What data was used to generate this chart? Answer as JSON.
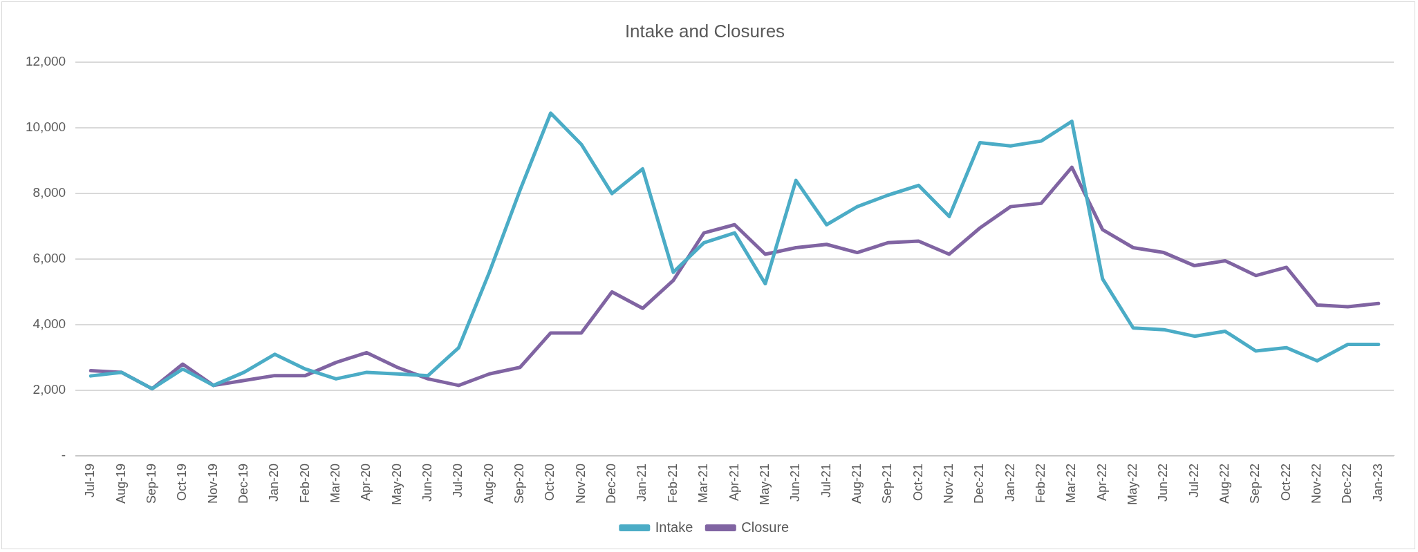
{
  "chart_data": {
    "type": "line",
    "title": "Intake and Closures",
    "categories": [
      "Jul-19",
      "Aug-19",
      "Sep-19",
      "Oct-19",
      "Nov-19",
      "Dec-19",
      "Jan-20",
      "Feb-20",
      "Mar-20",
      "Apr-20",
      "May-20",
      "Jun-20",
      "Jul-20",
      "Aug-20",
      "Sep-20",
      "Oct-20",
      "Nov-20",
      "Dec-20",
      "Jan-21",
      "Feb-21",
      "Mar-21",
      "Apr-21",
      "May-21",
      "Jun-21",
      "Jul-21",
      "Aug-21",
      "Sep-21",
      "Oct-21",
      "Nov-21",
      "Dec-21",
      "Jan-22",
      "Feb-22",
      "Mar-22",
      "Apr-22",
      "May-22",
      "Jun-22",
      "Jul-22",
      "Aug-22",
      "Sep-22",
      "Oct-22",
      "Nov-22",
      "Dec-22",
      "Jan-23"
    ],
    "series": [
      {
        "name": "Intake",
        "color": "#4bacc6",
        "values": [
          2440,
          2550,
          2050,
          2650,
          2150,
          2550,
          3100,
          2650,
          2350,
          2550,
          2500,
          2450,
          3300,
          5600,
          8100,
          10450,
          9500,
          8000,
          8750,
          5600,
          6500,
          6800,
          5250,
          8400,
          7050,
          7600,
          7950,
          8250,
          7300,
          9550,
          9450,
          9600,
          10200,
          5400,
          3900,
          3850,
          3650,
          3800,
          3200,
          3300,
          2900,
          3400,
          3400
        ]
      },
      {
        "name": "Closure",
        "color": "#8064a2",
        "values": [
          2600,
          2550,
          2050,
          2800,
          2150,
          2300,
          2450,
          2450,
          2850,
          3150,
          2700,
          2350,
          2150,
          2500,
          2700,
          3750,
          3750,
          5000,
          4500,
          5350,
          6800,
          7050,
          6150,
          6350,
          6450,
          6200,
          6500,
          6550,
          6150,
          6950,
          7600,
          7700,
          8800,
          6900,
          6350,
          6200,
          5800,
          5950,
          5500,
          5750,
          4600,
          4550,
          4650
        ]
      }
    ],
    "ylim": [
      0,
      12000
    ],
    "yticks": [
      {
        "value": 0,
        "label": "-"
      },
      {
        "value": 2000,
        "label": "2,000"
      },
      {
        "value": 4000,
        "label": "4,000"
      },
      {
        "value": 6000,
        "label": "6,000"
      },
      {
        "value": 8000,
        "label": "8,000"
      },
      {
        "value": 10000,
        "label": "10,000"
      },
      {
        "value": 12000,
        "label": "12,000"
      }
    ],
    "grid": "y",
    "legend": "bottom",
    "marker": "none",
    "line_style": "solid"
  }
}
